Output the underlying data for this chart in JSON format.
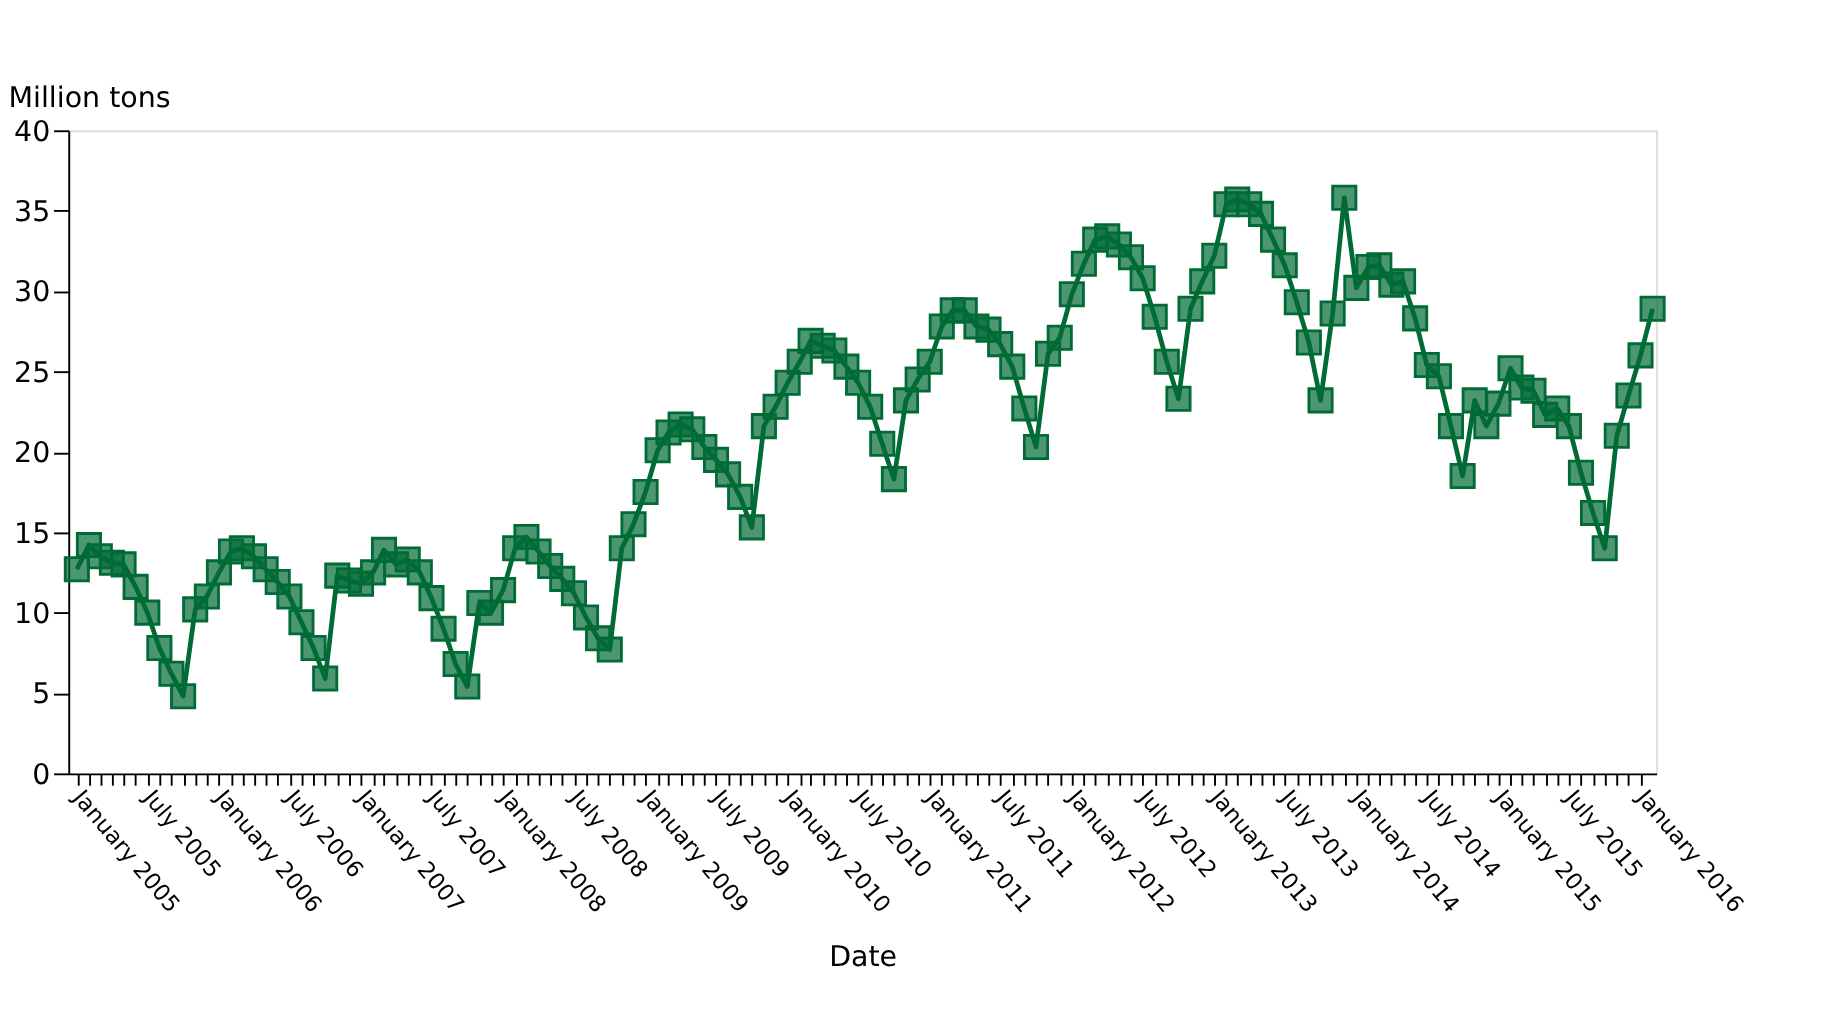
{
  "chart_data": {
    "type": "line",
    "xlabel": "Date",
    "ylabel": "Million tons",
    "x": [
      "2005-01",
      "2005-02",
      "2005-03",
      "2005-04",
      "2005-05",
      "2005-06",
      "2005-07",
      "2005-08",
      "2005-09",
      "2005-10",
      "2005-11",
      "2005-12",
      "2006-01",
      "2006-02",
      "2006-03",
      "2006-04",
      "2006-05",
      "2006-06",
      "2006-07",
      "2006-08",
      "2006-09",
      "2006-10",
      "2006-11",
      "2006-12",
      "2007-01",
      "2007-02",
      "2007-03",
      "2007-04",
      "2007-05",
      "2007-06",
      "2007-07",
      "2007-08",
      "2007-09",
      "2007-10",
      "2007-11",
      "2007-12",
      "2008-01",
      "2008-02",
      "2008-03",
      "2008-04",
      "2008-05",
      "2008-06",
      "2008-07",
      "2008-08",
      "2008-09",
      "2008-10",
      "2008-11",
      "2008-12",
      "2009-01",
      "2009-02",
      "2009-03",
      "2009-04",
      "2009-05",
      "2009-06",
      "2009-07",
      "2009-08",
      "2009-09",
      "2009-10",
      "2009-11",
      "2009-12",
      "2010-01",
      "2010-02",
      "2010-03",
      "2010-04",
      "2010-05",
      "2010-06",
      "2010-07",
      "2010-08",
      "2010-09",
      "2010-10",
      "2010-11",
      "2010-12",
      "2011-01",
      "2011-02",
      "2011-03",
      "2011-04",
      "2011-05",
      "2011-06",
      "2011-07",
      "2011-08",
      "2011-09",
      "2011-10",
      "2011-11",
      "2011-12",
      "2012-01",
      "2012-02",
      "2012-03",
      "2012-04",
      "2012-05",
      "2012-06",
      "2012-07",
      "2012-08",
      "2012-09",
      "2012-10",
      "2012-11",
      "2012-12",
      "2013-01",
      "2013-02",
      "2013-03",
      "2013-04",
      "2013-05",
      "2013-06",
      "2013-07",
      "2013-08",
      "2013-09",
      "2013-10",
      "2013-11",
      "2013-12",
      "2014-01",
      "2014-02",
      "2014-03",
      "2014-04",
      "2014-05",
      "2014-06",
      "2014-07",
      "2014-08",
      "2014-09",
      "2014-10",
      "2014-11",
      "2014-12",
      "2015-01",
      "2015-02",
      "2015-03",
      "2015-04",
      "2015-05",
      "2015-06",
      "2015-07",
      "2015-08",
      "2015-09",
      "2015-10",
      "2015-11",
      "2015-12",
      "2016-01",
      "2016-02"
    ],
    "series": [
      {
        "color": "#006b35",
        "values": [
          12.7,
          14.2,
          13.5,
          13.1,
          13.0,
          11.6,
          10.0,
          7.8,
          6.2,
          4.8,
          10.2,
          11.0,
          12.5,
          13.8,
          14.0,
          13.5,
          12.7,
          11.9,
          11.0,
          9.4,
          7.8,
          5.9,
          12.3,
          12.0,
          11.8,
          12.5,
          13.9,
          13.0,
          13.3,
          12.5,
          10.9,
          9.0,
          6.8,
          5.4,
          10.6,
          10.0,
          11.4,
          14.0,
          14.7,
          13.8,
          12.9,
          12.1,
          11.2,
          9.7,
          8.4,
          7.7,
          14.0,
          15.5,
          17.5,
          20.1,
          21.2,
          21.7,
          21.4,
          20.3,
          19.5,
          18.6,
          17.2,
          15.3,
          21.6,
          22.8,
          24.3,
          25.6,
          26.9,
          26.6,
          26.3,
          25.3,
          24.3,
          22.8,
          20.5,
          18.3,
          23.2,
          24.5,
          25.6,
          27.8,
          28.8,
          28.8,
          27.8,
          27.6,
          26.7,
          25.3,
          22.7,
          20.3,
          26.1,
          27.1,
          29.8,
          31.7,
          33.2,
          33.4,
          32.9,
          32.1,
          30.8,
          28.4,
          25.6,
          23.3,
          28.9,
          30.6,
          32.2,
          35.4,
          35.7,
          35.4,
          34.8,
          33.2,
          31.6,
          29.3,
          26.8,
          23.2,
          28.6,
          35.8,
          30.2,
          31.5,
          31.6,
          30.4,
          30.6,
          28.3,
          25.4,
          24.7,
          21.6,
          18.5,
          23.2,
          21.6,
          23.0,
          25.2,
          24.0,
          23.8,
          22.3,
          22.7,
          21.6,
          18.7,
          16.2,
          14.0,
          21.0,
          23.5,
          26.0,
          28.9
        ]
      }
    ],
    "xlim": [
      "2004-12-10",
      "2016-02-10"
    ],
    "xticks": [
      {
        "value": "2005-01",
        "label": "January 2005"
      },
      {
        "value": "2005-02",
        "label": null
      },
      {
        "value": "2005-03",
        "label": null
      },
      {
        "value": "2005-04",
        "label": null
      },
      {
        "value": "2005-05",
        "label": null
      },
      {
        "value": "2005-06",
        "label": null
      },
      {
        "value": "2005-07",
        "label": "July 2005"
      },
      {
        "value": "2005-08",
        "label": null
      },
      {
        "value": "2005-09",
        "label": null
      },
      {
        "value": "2005-10",
        "label": null
      },
      {
        "value": "2005-11",
        "label": null
      },
      {
        "value": "2005-12",
        "label": null
      },
      {
        "value": "2006-01",
        "label": "January 2006"
      },
      {
        "value": "2006-02",
        "label": null
      },
      {
        "value": "2006-03",
        "label": null
      },
      {
        "value": "2006-04",
        "label": null
      },
      {
        "value": "2006-05",
        "label": null
      },
      {
        "value": "2006-06",
        "label": null
      },
      {
        "value": "2006-07",
        "label": "July 2006"
      },
      {
        "value": "2006-08",
        "label": null
      },
      {
        "value": "2006-09",
        "label": null
      },
      {
        "value": "2006-10",
        "label": null
      },
      {
        "value": "2006-11",
        "label": null
      },
      {
        "value": "2006-12",
        "label": null
      },
      {
        "value": "2007-01",
        "label": "January 2007"
      },
      {
        "value": "2007-02",
        "label": null
      },
      {
        "value": "2007-03",
        "label": null
      },
      {
        "value": "2007-04",
        "label": null
      },
      {
        "value": "2007-05",
        "label": null
      },
      {
        "value": "2007-06",
        "label": null
      },
      {
        "value": "2007-07",
        "label": "July 2007"
      },
      {
        "value": "2007-08",
        "label": null
      },
      {
        "value": "2007-09",
        "label": null
      },
      {
        "value": "2007-10",
        "label": null
      },
      {
        "value": "2007-11",
        "label": null
      },
      {
        "value": "2007-12",
        "label": null
      },
      {
        "value": "2008-01",
        "label": "January 2008"
      },
      {
        "value": "2008-02",
        "label": null
      },
      {
        "value": "2008-03",
        "label": null
      },
      {
        "value": "2008-04",
        "label": null
      },
      {
        "value": "2008-05",
        "label": null
      },
      {
        "value": "2008-06",
        "label": null
      },
      {
        "value": "2008-07",
        "label": "July 2008"
      },
      {
        "value": "2008-08",
        "label": null
      },
      {
        "value": "2008-09",
        "label": null
      },
      {
        "value": "2008-10",
        "label": null
      },
      {
        "value": "2008-11",
        "label": null
      },
      {
        "value": "2008-12",
        "label": null
      },
      {
        "value": "2009-01",
        "label": "January 2009"
      },
      {
        "value": "2009-02",
        "label": null
      },
      {
        "value": "2009-03",
        "label": null
      },
      {
        "value": "2009-04",
        "label": null
      },
      {
        "value": "2009-05",
        "label": null
      },
      {
        "value": "2009-06",
        "label": null
      },
      {
        "value": "2009-07",
        "label": "July 2009"
      },
      {
        "value": "2009-08",
        "label": null
      },
      {
        "value": "2009-09",
        "label": null
      },
      {
        "value": "2009-10",
        "label": null
      },
      {
        "value": "2009-11",
        "label": null
      },
      {
        "value": "2009-12",
        "label": null
      },
      {
        "value": "2010-01",
        "label": "January 2010"
      },
      {
        "value": "2010-02",
        "label": null
      },
      {
        "value": "2010-03",
        "label": null
      },
      {
        "value": "2010-04",
        "label": null
      },
      {
        "value": "2010-05",
        "label": null
      },
      {
        "value": "2010-06",
        "label": null
      },
      {
        "value": "2010-07",
        "label": "July 2010"
      },
      {
        "value": "2010-08",
        "label": null
      },
      {
        "value": "2010-09",
        "label": null
      },
      {
        "value": "2010-10",
        "label": null
      },
      {
        "value": "2010-11",
        "label": null
      },
      {
        "value": "2010-12",
        "label": null
      },
      {
        "value": "2011-01",
        "label": "January 2011"
      },
      {
        "value": "2011-02",
        "label": null
      },
      {
        "value": "2011-03",
        "label": null
      },
      {
        "value": "2011-04",
        "label": null
      },
      {
        "value": "2011-05",
        "label": null
      },
      {
        "value": "2011-06",
        "label": null
      },
      {
        "value": "2011-07",
        "label": "July 2011"
      },
      {
        "value": "2011-08",
        "label": null
      },
      {
        "value": "2011-09",
        "label": null
      },
      {
        "value": "2011-10",
        "label": null
      },
      {
        "value": "2011-11",
        "label": null
      },
      {
        "value": "2011-12",
        "label": null
      },
      {
        "value": "2012-01",
        "label": "January 2012"
      },
      {
        "value": "2012-02",
        "label": null
      },
      {
        "value": "2012-03",
        "label": null
      },
      {
        "value": "2012-04",
        "label": null
      },
      {
        "value": "2012-05",
        "label": null
      },
      {
        "value": "2012-06",
        "label": null
      },
      {
        "value": "2012-07",
        "label": "July 2012"
      },
      {
        "value": "2012-08",
        "label": null
      },
      {
        "value": "2012-09",
        "label": null
      },
      {
        "value": "2012-10",
        "label": null
      },
      {
        "value": "2012-11",
        "label": null
      },
      {
        "value": "2012-12",
        "label": null
      },
      {
        "value": "2013-01",
        "label": "January 2013"
      },
      {
        "value": "2013-02",
        "label": null
      },
      {
        "value": "2013-03",
        "label": null
      },
      {
        "value": "2013-04",
        "label": null
      },
      {
        "value": "2013-05",
        "label": null
      },
      {
        "value": "2013-06",
        "label": null
      },
      {
        "value": "2013-07",
        "label": "July 2013"
      },
      {
        "value": "2013-08",
        "label": null
      },
      {
        "value": "2013-09",
        "label": null
      },
      {
        "value": "2013-10",
        "label": null
      },
      {
        "value": "2013-11",
        "label": null
      },
      {
        "value": "2013-12",
        "label": null
      },
      {
        "value": "2014-01",
        "label": "January 2014"
      },
      {
        "value": "2014-02",
        "label": null
      },
      {
        "value": "2014-03",
        "label": null
      },
      {
        "value": "2014-04",
        "label": null
      },
      {
        "value": "2014-05",
        "label": null
      },
      {
        "value": "2014-06",
        "label": null
      },
      {
        "value": "2014-07",
        "label": "July 2014"
      },
      {
        "value": "2014-08",
        "label": null
      },
      {
        "value": "2014-09",
        "label": null
      },
      {
        "value": "2014-10",
        "label": null
      },
      {
        "value": "2014-11",
        "label": null
      },
      {
        "value": "2014-12",
        "label": null
      },
      {
        "value": "2015-01",
        "label": "January 2015"
      },
      {
        "value": "2015-02",
        "label": null
      },
      {
        "value": "2015-03",
        "label": null
      },
      {
        "value": "2015-04",
        "label": null
      },
      {
        "value": "2015-05",
        "label": null
      },
      {
        "value": "2015-06",
        "label": null
      },
      {
        "value": "2015-07",
        "label": "July 2015"
      },
      {
        "value": "2015-08",
        "label": null
      },
      {
        "value": "2015-09",
        "label": null
      },
      {
        "value": "2015-10",
        "label": null
      },
      {
        "value": "2015-11",
        "label": null
      },
      {
        "value": "2015-12",
        "label": null
      },
      {
        "value": "2016-01",
        "label": "January 2016"
      }
    ],
    "ylim": [
      0,
      40
    ],
    "yticks": [
      0,
      5,
      10,
      15,
      20,
      25,
      30,
      35,
      40
    ],
    "grid": false,
    "marker": "square",
    "line_style": "solid"
  }
}
